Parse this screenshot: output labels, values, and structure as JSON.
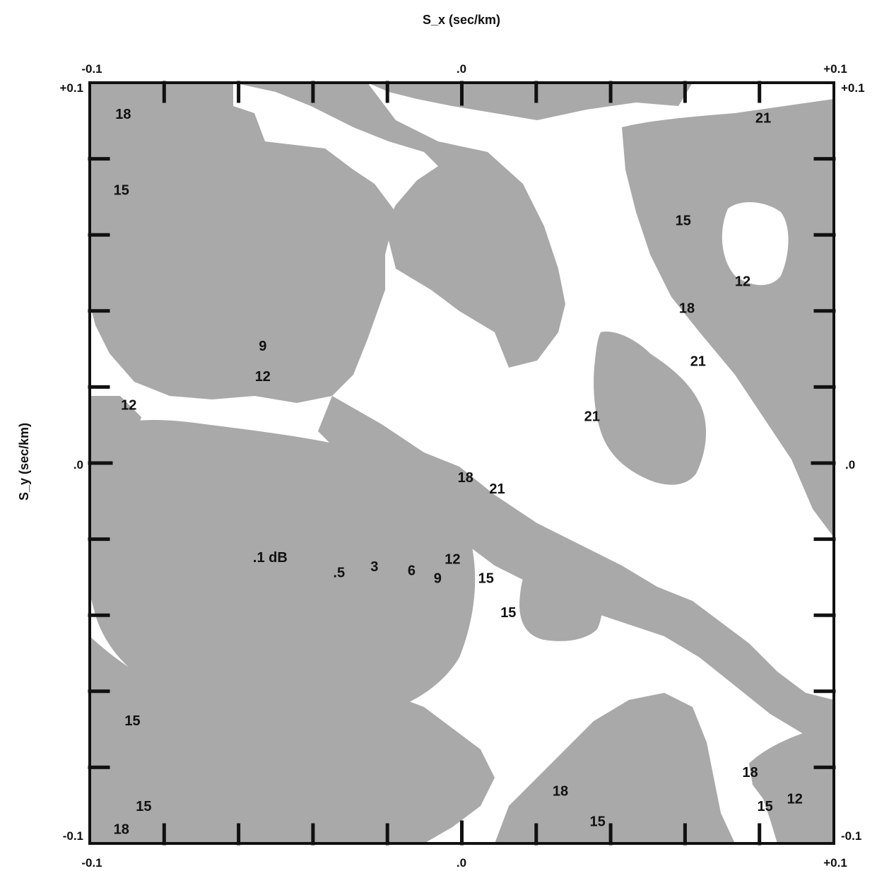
{
  "colors": {
    "band_fill": "#a9a9a9",
    "background": "#ffffff",
    "frame": "#111111",
    "text": "#111111"
  },
  "chart_data": {
    "type": "contour",
    "title": "",
    "xlabel": "S_x (sec/km)",
    "ylabel": "S_y (sec/km)",
    "xlim": [
      -0.1,
      0.1
    ],
    "ylim": [
      -0.1,
      0.1
    ],
    "units": "dB",
    "grid": false,
    "legend": "none",
    "x_tick_labels": [
      {
        "value": -0.1,
        "label": "-0.1"
      },
      {
        "value": 0,
        "label": ".0"
      },
      {
        "value": 0.1,
        "label": "+0.1"
      }
    ],
    "y_tick_labels": [
      {
        "value": 0.1,
        "label": "+0.1"
      },
      {
        "value": 0,
        "label": ".0"
      },
      {
        "value": -0.1,
        "label": "-0.1"
      }
    ],
    "minor_tick_values": [
      -0.08,
      -0.06,
      -0.04,
      -0.02,
      0.02,
      0.04,
      0.06,
      0.08
    ],
    "contour_levels_db": [
      0.1,
      0.5,
      3,
      6,
      9,
      12,
      15,
      18,
      21
    ],
    "contour_labels": [
      {
        "text": "18",
        "x": -0.091,
        "y": 0.0915
      },
      {
        "text": "15",
        "x": -0.0915,
        "y": 0.0715
      },
      {
        "text": "9",
        "x": -0.0535,
        "y": 0.0305
      },
      {
        "text": "12",
        "x": -0.0535,
        "y": 0.0225
      },
      {
        "text": "12",
        "x": -0.0895,
        "y": 0.015
      },
      {
        "text": "21",
        "x": 0.081,
        "y": 0.0905
      },
      {
        "text": "15",
        "x": 0.0595,
        "y": 0.0635
      },
      {
        "text": "12",
        "x": 0.0755,
        "y": 0.0475
      },
      {
        "text": "18",
        "x": 0.0605,
        "y": 0.0405
      },
      {
        "text": "21",
        "x": 0.0635,
        "y": 0.0265
      },
      {
        "text": "21",
        "x": 0.035,
        "y": 0.012
      },
      {
        "text": "18",
        "x": 0.001,
        "y": -0.004
      },
      {
        "text": "21",
        "x": 0.0095,
        "y": -0.007
      },
      {
        "text": ".1 dB",
        "x": -0.0515,
        "y": -0.025
      },
      {
        "text": ".5",
        "x": -0.033,
        "y": -0.029
      },
      {
        "text": "3",
        "x": -0.0235,
        "y": -0.0275
      },
      {
        "text": "6",
        "x": -0.0135,
        "y": -0.0285
      },
      {
        "text": "9",
        "x": -0.0065,
        "y": -0.0305
      },
      {
        "text": "12",
        "x": -0.0025,
        "y": -0.0255
      },
      {
        "text": "15",
        "x": 0.0065,
        "y": -0.0305
      },
      {
        "text": "15",
        "x": 0.0125,
        "y": -0.0395
      },
      {
        "text": "15",
        "x": -0.0885,
        "y": -0.068
      },
      {
        "text": "15",
        "x": -0.0855,
        "y": -0.0905
      },
      {
        "text": "18",
        "x": -0.0915,
        "y": -0.0965
      },
      {
        "text": "18",
        "x": 0.0265,
        "y": -0.0865
      },
      {
        "text": "15",
        "x": 0.0365,
        "y": -0.0945
      },
      {
        "text": "18",
        "x": 0.0775,
        "y": -0.0815
      },
      {
        "text": "15",
        "x": 0.0815,
        "y": -0.0905
      },
      {
        "text": "12",
        "x": 0.0895,
        "y": -0.0885
      }
    ]
  }
}
